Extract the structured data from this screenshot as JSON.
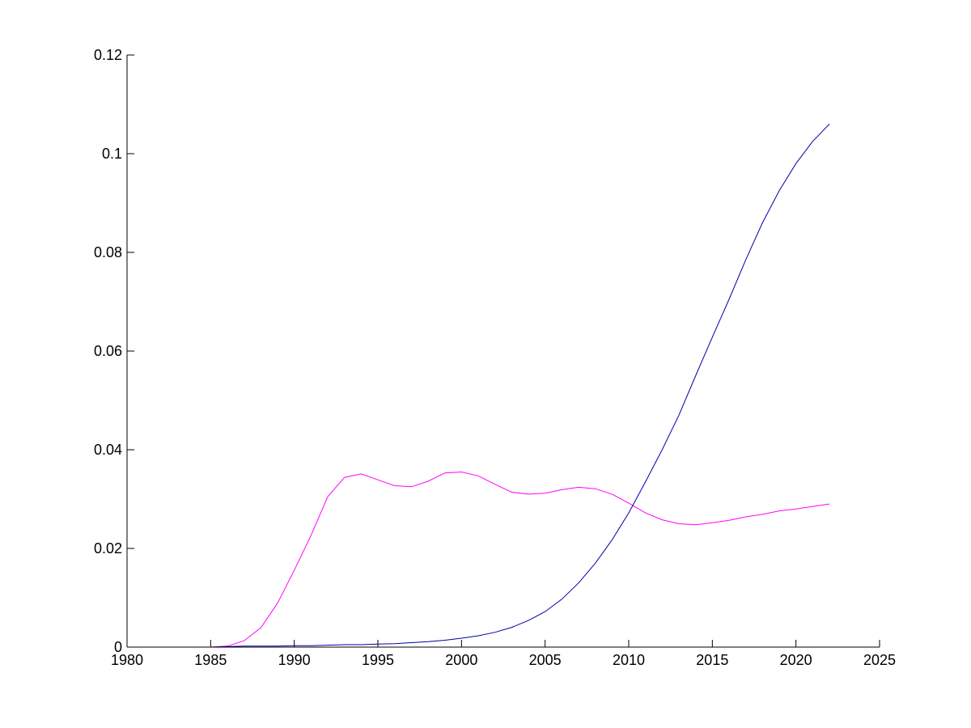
{
  "chart_data": {
    "type": "line",
    "title": "",
    "xlabel": "",
    "ylabel": "",
    "xlim": [
      1980,
      2025
    ],
    "ylim": [
      0,
      0.12
    ],
    "grid": false,
    "xticks": [
      1980,
      1985,
      1990,
      1995,
      2000,
      2005,
      2010,
      2015,
      2020,
      2025
    ],
    "yticks": [
      0,
      0.02,
      0.04,
      0.06,
      0.08,
      0.1,
      0.12
    ],
    "xtick_labels": [
      "1980",
      "1985",
      "1990",
      "1995",
      "2000",
      "2005",
      "2010",
      "2015",
      "2020",
      "2025"
    ],
    "ytick_labels": [
      "0",
      "0.02",
      "0.04",
      "0.06",
      "0.08",
      "0.1",
      "0.12"
    ],
    "x": [
      1980,
      1981,
      1982,
      1983,
      1984,
      1985,
      1986,
      1987,
      1988,
      1989,
      1990,
      1991,
      1992,
      1993,
      1994,
      1995,
      1996,
      1997,
      1998,
      1999,
      2000,
      2001,
      2002,
      2003,
      2004,
      2005,
      2006,
      2007,
      2008,
      2009,
      2010,
      2011,
      2012,
      2013,
      2014,
      2015,
      2016,
      2017,
      2018,
      2019,
      2020,
      2021,
      2022
    ],
    "series": [
      {
        "color": "#ff00ff",
        "values": [
          0,
          0,
          0,
          0,
          0,
          0,
          0.0002,
          0.0013,
          0.0039,
          0.0089,
          0.0156,
          0.0226,
          0.0305,
          0.0344,
          0.0351,
          0.0339,
          0.0327,
          0.0325,
          0.0336,
          0.0353,
          0.0355,
          0.0347,
          0.033,
          0.0314,
          0.031,
          0.0312,
          0.0319,
          0.0324,
          0.0321,
          0.031,
          0.0292,
          0.0272,
          0.0258,
          0.025,
          0.0248,
          0.0252,
          0.0257,
          0.0264,
          0.0269,
          0.0276,
          0.028,
          0.0285,
          0.029
        ]
      },
      {
        "color": "#0000aa",
        "values": [
          0,
          0,
          0,
          0,
          0,
          0,
          0.0001,
          0.0002,
          0.0002,
          0.0002,
          0.0003,
          0.0003,
          0.0004,
          0.0005,
          0.0005,
          0.0006,
          0.0007,
          0.0009,
          0.0011,
          0.0014,
          0.0018,
          0.0023,
          0.003,
          0.004,
          0.0054,
          0.0072,
          0.0097,
          0.013,
          0.017,
          0.0217,
          0.0272,
          0.0335,
          0.04,
          0.047,
          0.055,
          0.0628,
          0.0705,
          0.0785,
          0.086,
          0.0925,
          0.098,
          0.1025,
          0.106
        ]
      }
    ]
  }
}
